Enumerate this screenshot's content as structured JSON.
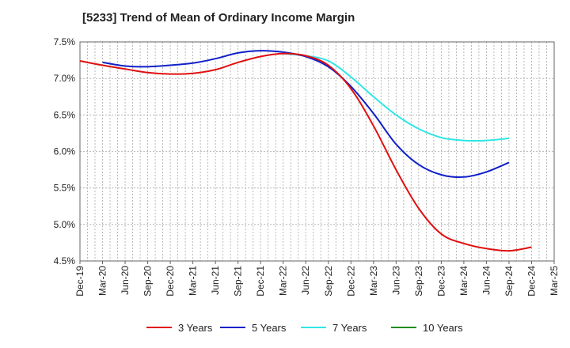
{
  "title": "[5233]  Trend of Mean of Ordinary Income Margin",
  "chart_data": {
    "type": "line",
    "x_ticks": [
      "Dec-19",
      "Mar-20",
      "Jun-20",
      "Sep-20",
      "Dec-20",
      "Mar-21",
      "Jun-21",
      "Sep-21",
      "Dec-21",
      "Mar-22",
      "Jun-22",
      "Sep-22",
      "Dec-22",
      "Mar-23",
      "Jun-23",
      "Sep-23",
      "Dec-23",
      "Mar-24",
      "Jun-24",
      "Sep-24",
      "Dec-24",
      "Mar-25"
    ],
    "y_ticks": [
      "4.5%",
      "5.0%",
      "5.5%",
      "6.0%",
      "6.5%",
      "7.0%",
      "7.5%"
    ],
    "ylim": [
      4.5,
      7.5
    ],
    "grid": true,
    "legend_position": "bottom",
    "series": [
      {
        "name": "3 Years",
        "color": "#e01010",
        "start_index": 0,
        "values": [
          7.24,
          7.18,
          7.13,
          7.08,
          7.06,
          7.07,
          7.12,
          7.22,
          7.3,
          7.34,
          7.31,
          7.18,
          6.86,
          6.35,
          5.75,
          5.22,
          4.87,
          4.74,
          4.67,
          4.64,
          4.69
        ]
      },
      {
        "name": "5 Years",
        "color": "#1020c8",
        "start_index": 1,
        "values": [
          7.22,
          7.17,
          7.16,
          7.18,
          7.21,
          7.27,
          7.35,
          7.38,
          7.36,
          7.3,
          7.16,
          6.89,
          6.52,
          6.1,
          5.82,
          5.68,
          5.65,
          5.72,
          5.85
        ]
      },
      {
        "name": "7 Years",
        "color": "#30e6e6",
        "start_index": 9,
        "values": [
          7.34,
          7.31,
          7.24,
          7.02,
          6.75,
          6.5,
          6.31,
          6.19,
          6.15,
          6.15,
          6.18
        ]
      },
      {
        "name": "10 Years",
        "color": "#1e8c1e",
        "start_index": 0,
        "values": []
      }
    ]
  }
}
